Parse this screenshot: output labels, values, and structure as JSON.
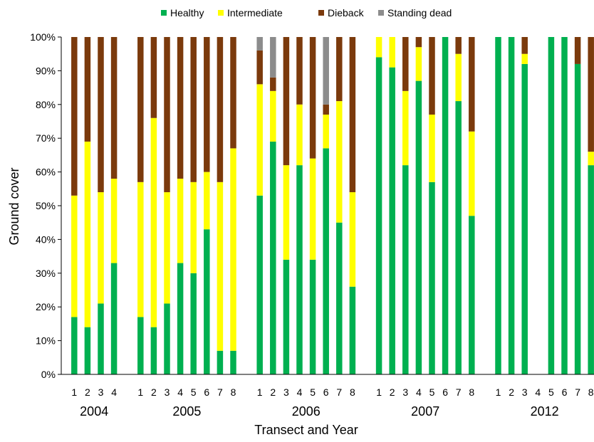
{
  "chart_data": {
    "type": "bar",
    "stacked": true,
    "xlabel": "Transect and Year",
    "ylabel": "Ground cover",
    "ylim": [
      0,
      100
    ],
    "yticks": [
      "0%",
      "10%",
      "20%",
      "30%",
      "40%",
      "50%",
      "60%",
      "70%",
      "80%",
      "90%",
      "100%"
    ],
    "legend_position": "top",
    "series_names": [
      "Healthy",
      "Intermediate",
      "Dieback",
      "Standing dead"
    ],
    "colors": {
      "Healthy": "#00b050",
      "Intermediate": "#ffff00",
      "Dieback": "#7b3a0c",
      "Standing dead": "#8c8c8c"
    },
    "groups": [
      {
        "year": "2004",
        "bars": [
          {
            "transect": "1",
            "Healthy": 17,
            "Intermediate": 36,
            "Dieback": 47,
            "Standing dead": 0
          },
          {
            "transect": "2",
            "Healthy": 14,
            "Intermediate": 55,
            "Dieback": 31,
            "Standing dead": 0
          },
          {
            "transect": "3",
            "Healthy": 21,
            "Intermediate": 33,
            "Dieback": 46,
            "Standing dead": 0
          },
          {
            "transect": "4",
            "Healthy": 33,
            "Intermediate": 25,
            "Dieback": 42,
            "Standing dead": 0
          }
        ]
      },
      {
        "year": "2005",
        "bars": [
          {
            "transect": "1",
            "Healthy": 17,
            "Intermediate": 40,
            "Dieback": 43,
            "Standing dead": 0
          },
          {
            "transect": "2",
            "Healthy": 14,
            "Intermediate": 62,
            "Dieback": 24,
            "Standing dead": 0
          },
          {
            "transect": "3",
            "Healthy": 21,
            "Intermediate": 33,
            "Dieback": 46,
            "Standing dead": 0
          },
          {
            "transect": "4",
            "Healthy": 33,
            "Intermediate": 25,
            "Dieback": 42,
            "Standing dead": 0
          },
          {
            "transect": "5",
            "Healthy": 30,
            "Intermediate": 27,
            "Dieback": 43,
            "Standing dead": 0
          },
          {
            "transect": "6",
            "Healthy": 43,
            "Intermediate": 17,
            "Dieback": 40,
            "Standing dead": 0
          },
          {
            "transect": "7",
            "Healthy": 7,
            "Intermediate": 50,
            "Dieback": 43,
            "Standing dead": 0
          },
          {
            "transect": "8",
            "Healthy": 7,
            "Intermediate": 60,
            "Dieback": 33,
            "Standing dead": 0
          }
        ]
      },
      {
        "year": "2006",
        "bars": [
          {
            "transect": "1",
            "Healthy": 53,
            "Intermediate": 33,
            "Dieback": 10,
            "Standing dead": 4
          },
          {
            "transect": "2",
            "Healthy": 69,
            "Intermediate": 15,
            "Dieback": 4,
            "Standing dead": 12
          },
          {
            "transect": "3",
            "Healthy": 34,
            "Intermediate": 28,
            "Dieback": 38,
            "Standing dead": 0
          },
          {
            "transect": "4",
            "Healthy": 62,
            "Intermediate": 18,
            "Dieback": 20,
            "Standing dead": 0
          },
          {
            "transect": "5",
            "Healthy": 34,
            "Intermediate": 30,
            "Dieback": 36,
            "Standing dead": 0
          },
          {
            "transect": "6",
            "Healthy": 67,
            "Intermediate": 10,
            "Dieback": 3,
            "Standing dead": 20
          },
          {
            "transect": "7",
            "Healthy": 45,
            "Intermediate": 36,
            "Dieback": 19,
            "Standing dead": 0
          },
          {
            "transect": "8",
            "Healthy": 26,
            "Intermediate": 28,
            "Dieback": 46,
            "Standing dead": 0
          }
        ]
      },
      {
        "year": "2007",
        "bars": [
          {
            "transect": "1",
            "Healthy": 94,
            "Intermediate": 6,
            "Dieback": 0,
            "Standing dead": 0
          },
          {
            "transect": "2",
            "Healthy": 91,
            "Intermediate": 9,
            "Dieback": 0,
            "Standing dead": 0
          },
          {
            "transect": "3",
            "Healthy": 62,
            "Intermediate": 22,
            "Dieback": 16,
            "Standing dead": 0
          },
          {
            "transect": "4",
            "Healthy": 87,
            "Intermediate": 10,
            "Dieback": 3,
            "Standing dead": 0
          },
          {
            "transect": "5",
            "Healthy": 57,
            "Intermediate": 20,
            "Dieback": 23,
            "Standing dead": 0
          },
          {
            "transect": "6",
            "Healthy": 100,
            "Intermediate": 0,
            "Dieback": 0,
            "Standing dead": 0
          },
          {
            "transect": "7",
            "Healthy": 81,
            "Intermediate": 14,
            "Dieback": 5,
            "Standing dead": 0
          },
          {
            "transect": "8",
            "Healthy": 47,
            "Intermediate": 25,
            "Dieback": 28,
            "Standing dead": 0
          }
        ]
      },
      {
        "year": "2012",
        "bars": [
          {
            "transect": "1",
            "Healthy": 100,
            "Intermediate": 0,
            "Dieback": 0,
            "Standing dead": 0
          },
          {
            "transect": "2",
            "Healthy": 100,
            "Intermediate": 0,
            "Dieback": 0,
            "Standing dead": 0
          },
          {
            "transect": "3",
            "Healthy": 92,
            "Intermediate": 3,
            "Dieback": 5,
            "Standing dead": 0
          },
          {
            "transect": "4",
            "Healthy": 0,
            "Intermediate": 0,
            "Dieback": 0,
            "Standing dead": 0
          },
          {
            "transect": "5",
            "Healthy": 100,
            "Intermediate": 0,
            "Dieback": 0,
            "Standing dead": 0
          },
          {
            "transect": "6",
            "Healthy": 100,
            "Intermediate": 0,
            "Dieback": 0,
            "Standing dead": 0
          },
          {
            "transect": "7",
            "Healthy": 92,
            "Intermediate": 0,
            "Dieback": 8,
            "Standing dead": 0
          },
          {
            "transect": "8",
            "Healthy": 62,
            "Intermediate": 4,
            "Dieback": 34,
            "Standing dead": 0
          }
        ]
      }
    ]
  }
}
